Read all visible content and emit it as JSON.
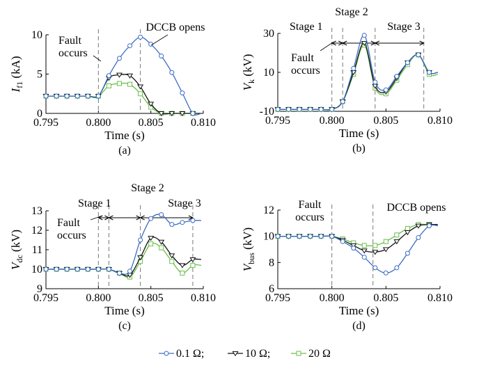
{
  "chart_data": [
    {
      "type": "line",
      "panel_label": "(a)",
      "xlabel": "Time (s)",
      "ylabel": "I",
      "ylabel_sub": "f1",
      "ylabel_unit": " (kA)",
      "xlim": [
        0.795,
        0.81
      ],
      "ylim": [
        0,
        10
      ],
      "xticks": [
        0.795,
        0.8,
        0.805,
        0.81
      ],
      "xtick_labels": [
        "0.795",
        "0.800",
        "0.805",
        "0.810"
      ],
      "yticks": [
        0,
        5,
        10
      ],
      "ytick_labels": [
        "0",
        "5",
        "10"
      ],
      "vlines": [
        0.8,
        0.804
      ],
      "annotations": [
        {
          "lines": [
            "Fault",
            "occurs"
          ],
          "x": 0.8
        },
        {
          "lines": [
            "DCCB opens"
          ],
          "x": 0.804
        }
      ],
      "series": [
        {
          "color": "#3b6cc4",
          "marker": "circle",
          "x": [
            0.795,
            0.796,
            0.797,
            0.798,
            0.799,
            0.8,
            0.801,
            0.802,
            0.803,
            0.804,
            0.805,
            0.806,
            0.807,
            0.808,
            0.809
          ],
          "y": [
            2.2,
            2.2,
            2.2,
            2.2,
            2.2,
            2.2,
            4.8,
            7.0,
            8.6,
            9.7,
            8.8,
            7.3,
            5.2,
            2.6,
            0.0
          ]
        },
        {
          "color": "#111111",
          "marker": "triangle",
          "x": [
            0.795,
            0.796,
            0.797,
            0.798,
            0.799,
            0.8,
            0.801,
            0.802,
            0.803,
            0.804,
            0.805,
            0.806,
            0.807,
            0.808,
            0.809
          ],
          "y": [
            2.2,
            2.2,
            2.2,
            2.2,
            2.2,
            2.2,
            4.5,
            4.9,
            4.8,
            3.4,
            1.2,
            0.0,
            0.0,
            0.0,
            0.0
          ]
        },
        {
          "color": "#6abf4b",
          "marker": "square",
          "x": [
            0.795,
            0.796,
            0.797,
            0.798,
            0.799,
            0.8,
            0.801,
            0.802,
            0.803,
            0.804,
            0.805,
            0.806,
            0.807,
            0.808,
            0.809
          ],
          "y": [
            2.2,
            2.2,
            2.2,
            2.2,
            2.2,
            2.2,
            3.5,
            3.8,
            3.7,
            2.5,
            0.8,
            0.0,
            0.0,
            0.0,
            0.0
          ]
        }
      ]
    },
    {
      "type": "line",
      "panel_label": "(b)",
      "xlabel": "Time (s)",
      "ylabel": "V",
      "ylabel_sub": "k",
      "ylabel_unit": " (kV)",
      "xlim": [
        0.795,
        0.81
      ],
      "ylim": [
        -10,
        30
      ],
      "xticks": [
        0.795,
        0.8,
        0.805,
        0.81
      ],
      "xtick_labels": [
        "0.795",
        "0.800",
        "0.805",
        "0.810"
      ],
      "yticks": [
        -10,
        10,
        30
      ],
      "ytick_labels": [
        "-10",
        "10",
        "30"
      ],
      "vlines": [
        0.8,
        0.801,
        0.804,
        0.8085
      ],
      "annotations": [
        {
          "lines": [
            "Stage 1"
          ],
          "x": 0.8005
        },
        {
          "lines": [
            "Stage 2"
          ],
          "x": 0.8025
        },
        {
          "lines": [
            "Stage 3"
          ],
          "x": 0.8062
        },
        {
          "lines": [
            "Fault",
            "occurs"
          ],
          "x": 0.8
        }
      ],
      "series": [
        {
          "color": "#3b6cc4",
          "marker": "circle",
          "x": [
            0.795,
            0.796,
            0.797,
            0.798,
            0.799,
            0.8,
            0.801,
            0.802,
            0.803,
            0.804,
            0.805,
            0.806,
            0.807,
            0.808,
            0.809
          ],
          "y": [
            -9,
            -9,
            -9,
            -9,
            -9,
            -9,
            -5,
            12,
            29,
            5,
            1,
            8,
            15,
            19,
            10
          ]
        },
        {
          "color": "#111111",
          "marker": "triangle",
          "x": [
            0.795,
            0.796,
            0.797,
            0.798,
            0.799,
            0.8,
            0.801,
            0.802,
            0.803,
            0.804,
            0.805,
            0.806,
            0.807,
            0.808,
            0.809
          ],
          "y": [
            -9,
            -9,
            -9,
            -9,
            -9,
            -9,
            -5,
            10,
            25,
            3,
            0,
            7,
            15,
            19,
            10
          ]
        },
        {
          "color": "#6abf4b",
          "marker": "square",
          "x": [
            0.795,
            0.796,
            0.797,
            0.798,
            0.799,
            0.8,
            0.801,
            0.802,
            0.803,
            0.804,
            0.805,
            0.806,
            0.807,
            0.808,
            0.809
          ],
          "y": [
            -9,
            -9,
            -9,
            -9,
            -9,
            -9,
            -5,
            9,
            24,
            2,
            -1,
            6,
            14,
            19,
            9
          ]
        }
      ]
    },
    {
      "type": "line",
      "panel_label": "(c)",
      "xlabel": "Time (s)",
      "ylabel": "V",
      "ylabel_sub": "dc",
      "ylabel_unit": " (kV)",
      "xlim": [
        0.795,
        0.81
      ],
      "ylim": [
        9,
        13
      ],
      "xticks": [
        0.795,
        0.8,
        0.805,
        0.81
      ],
      "xtick_labels": [
        "0.795",
        "0.800",
        "0.805",
        "0.810"
      ],
      "yticks": [
        9,
        10,
        11,
        12,
        13
      ],
      "ytick_labels": [
        "9",
        "10",
        "11",
        "12",
        "13"
      ],
      "vlines": [
        0.8,
        0.801,
        0.804,
        0.809
      ],
      "annotations": [
        {
          "lines": [
            "Stage 1"
          ],
          "x": 0.8005
        },
        {
          "lines": [
            "Stage 2"
          ],
          "x": 0.8025
        },
        {
          "lines": [
            "Stage 3"
          ],
          "x": 0.8065
        },
        {
          "lines": [
            "Fault",
            "occurs"
          ],
          "x": 0.8
        }
      ],
      "series": [
        {
          "color": "#3b6cc4",
          "marker": "circle",
          "x": [
            0.795,
            0.796,
            0.797,
            0.798,
            0.799,
            0.8,
            0.801,
            0.802,
            0.803,
            0.804,
            0.805,
            0.806,
            0.807,
            0.808,
            0.809
          ],
          "y": [
            10.0,
            10.0,
            10.0,
            10.0,
            10.0,
            10.0,
            10.0,
            9.8,
            9.9,
            11.5,
            12.6,
            12.8,
            12.3,
            12.4,
            12.5
          ]
        },
        {
          "color": "#111111",
          "marker": "triangle",
          "x": [
            0.795,
            0.796,
            0.797,
            0.798,
            0.799,
            0.8,
            0.801,
            0.802,
            0.803,
            0.804,
            0.805,
            0.806,
            0.807,
            0.808,
            0.809
          ],
          "y": [
            10.0,
            10.0,
            10.0,
            10.0,
            10.0,
            10.0,
            10.0,
            9.8,
            9.7,
            10.6,
            11.6,
            11.4,
            10.7,
            10.2,
            10.5
          ]
        },
        {
          "color": "#6abf4b",
          "marker": "square",
          "x": [
            0.795,
            0.796,
            0.797,
            0.798,
            0.799,
            0.8,
            0.801,
            0.802,
            0.803,
            0.804,
            0.805,
            0.806,
            0.807,
            0.808,
            0.809
          ],
          "y": [
            10.0,
            10.0,
            10.0,
            10.0,
            10.0,
            10.0,
            10.0,
            9.8,
            9.6,
            10.4,
            11.3,
            11.1,
            10.4,
            9.8,
            10.2
          ]
        }
      ]
    },
    {
      "type": "line",
      "panel_label": "(d)",
      "xlabel": "Time (s)",
      "ylabel": "V",
      "ylabel_sub": "bus",
      "ylabel_unit": " (kV)",
      "xlim": [
        0.795,
        0.81
      ],
      "ylim": [
        6,
        12
      ],
      "xticks": [
        0.795,
        0.8,
        0.805,
        0.81
      ],
      "xtick_labels": [
        "0.795",
        "0.800",
        "0.805",
        "0.810"
      ],
      "yticks": [
        6,
        8,
        10,
        12
      ],
      "ytick_labels": [
        "6",
        "8",
        "10",
        "12"
      ],
      "vlines": [
        0.8,
        0.8038
      ],
      "annotations": [
        {
          "lines": [
            "Fault",
            "occurs"
          ],
          "x": 0.8
        },
        {
          "lines": [
            "DCCB opens"
          ],
          "x": 0.8038
        }
      ],
      "series": [
        {
          "color": "#3b6cc4",
          "marker": "circle",
          "x": [
            0.795,
            0.796,
            0.797,
            0.798,
            0.799,
            0.8,
            0.801,
            0.802,
            0.803,
            0.804,
            0.805,
            0.806,
            0.807,
            0.808,
            0.809
          ],
          "y": [
            10.0,
            10.0,
            10.0,
            10.0,
            10.0,
            10.0,
            9.6,
            9.1,
            8.4,
            7.6,
            7.2,
            7.6,
            8.7,
            9.9,
            10.8
          ]
        },
        {
          "color": "#111111",
          "marker": "triangle",
          "x": [
            0.795,
            0.796,
            0.797,
            0.798,
            0.799,
            0.8,
            0.801,
            0.802,
            0.803,
            0.804,
            0.805,
            0.806,
            0.807,
            0.808,
            0.809
          ],
          "y": [
            10.0,
            10.0,
            10.0,
            10.0,
            10.0,
            10.0,
            9.7,
            9.3,
            8.9,
            8.8,
            9.0,
            9.6,
            10.3,
            10.8,
            10.9
          ]
        },
        {
          "color": "#6abf4b",
          "marker": "square",
          "x": [
            0.795,
            0.796,
            0.797,
            0.798,
            0.799,
            0.8,
            0.801,
            0.802,
            0.803,
            0.804,
            0.805,
            0.806,
            0.807,
            0.808,
            0.809
          ],
          "y": [
            10.0,
            10.0,
            10.0,
            10.0,
            10.0,
            10.0,
            9.8,
            9.5,
            9.3,
            9.3,
            9.6,
            10.1,
            10.6,
            10.9,
            10.9
          ]
        }
      ]
    }
  ],
  "legend": {
    "items": [
      {
        "label": "0.1 Ω;",
        "color": "#3b6cc4",
        "marker": "circle"
      },
      {
        "label": "10 Ω;",
        "color": "#111111",
        "marker": "triangle"
      },
      {
        "label": "20 Ω",
        "color": "#6abf4b",
        "marker": "square"
      }
    ]
  }
}
